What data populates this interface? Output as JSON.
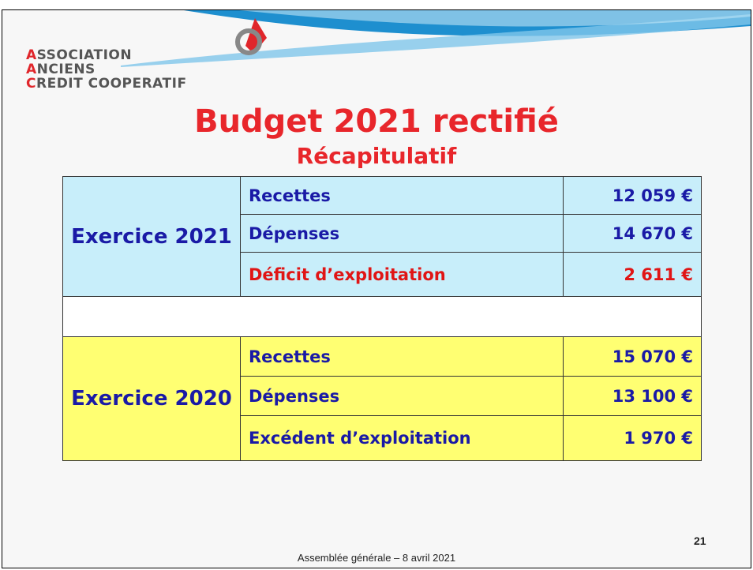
{
  "logo": {
    "lines": [
      "ASSOCIATION",
      "ANCIENS",
      "CREDIT COOPERATIF"
    ]
  },
  "header": {
    "title": "Budget 2021 rectifié",
    "subtitle": "Récapitulatif"
  },
  "table": {
    "groups": [
      {
        "label": "Exercice 2021",
        "rows": [
          [
            "Recettes",
            "12 059 €"
          ],
          [
            "Dépenses",
            "14 670 €"
          ],
          [
            "Déficit d’exploitation",
            "2 611 €"
          ]
        ]
      },
      {
        "label": "Exercice 2020",
        "rows": [
          [
            "Recettes",
            "15 070 €"
          ],
          [
            "Dépenses",
            "13 100 €"
          ],
          [
            "Excédent d’exploitation",
            "1 970 €"
          ]
        ]
      }
    ]
  },
  "footer": {
    "text": "Assemblée générale – 8 avril 2021",
    "page": "21"
  }
}
